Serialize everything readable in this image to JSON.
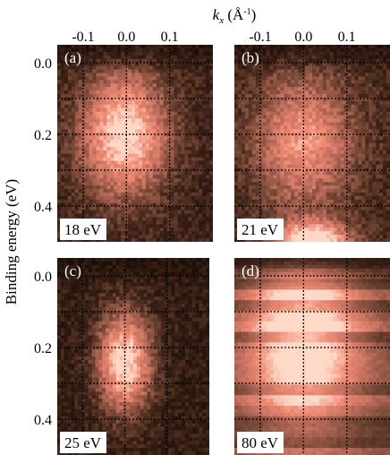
{
  "figure": {
    "x_axis_label_main": "k",
    "x_axis_label_sub": "x",
    "x_axis_label_unit_open": " (Å",
    "x_axis_label_unit_sup": "-1",
    "x_axis_label_unit_close": ")",
    "y_axis_label": "Binding energy (eV)",
    "x_ticks": [
      "-0.1",
      "0.0",
      "0.1"
    ],
    "y_ticks": [
      "0.0",
      "0.2",
      "0.4"
    ],
    "x_tick_values": [
      -0.1,
      0.0,
      0.1
    ],
    "y_tick_values": [
      0.0,
      0.2,
      0.4
    ],
    "x_range": [
      -0.16,
      0.2
    ],
    "y_range": [
      -0.05,
      0.5
    ],
    "grid_style": "dotted",
    "colormap": [
      "#1a0e08",
      "#3b2216",
      "#7a4a38",
      "#c4705f",
      "#f08e76",
      "#ffd9c8"
    ]
  },
  "panels": [
    {
      "id": "a",
      "letter": "(a)",
      "photon_energy": "18 eV",
      "spot": {
        "kx": -0.005,
        "eb": 0.2,
        "skx": 0.07,
        "seb": 0.12,
        "amp": 0.85
      },
      "spot2": null,
      "background": 0.2,
      "banded": false
    },
    {
      "id": "b",
      "letter": "(b)",
      "photon_energy": "21 eV",
      "spot": {
        "kx": 0.0,
        "eb": 0.22,
        "skx": 0.08,
        "seb": 0.13,
        "amp": 0.6
      },
      "spot2": {
        "kx": 0.02,
        "eb": 0.5,
        "skx": 0.06,
        "seb": 0.04,
        "amp": 0.95
      },
      "background": 0.22,
      "banded": false
    },
    {
      "id": "c",
      "letter": "(c)",
      "photon_energy": "25 eV",
      "spot": {
        "kx": 0.0,
        "eb": 0.24,
        "skx": 0.045,
        "seb": 0.1,
        "amp": 0.9
      },
      "spot2": null,
      "background": 0.15,
      "banded": false
    },
    {
      "id": "d",
      "letter": "(d)",
      "photon_energy": "80 eV",
      "spot": {
        "kx": 0.0,
        "eb": 0.17,
        "skx": 0.09,
        "seb": 0.18,
        "amp": 0.8
      },
      "spot2": null,
      "background": 0.35,
      "banded": true
    }
  ]
}
